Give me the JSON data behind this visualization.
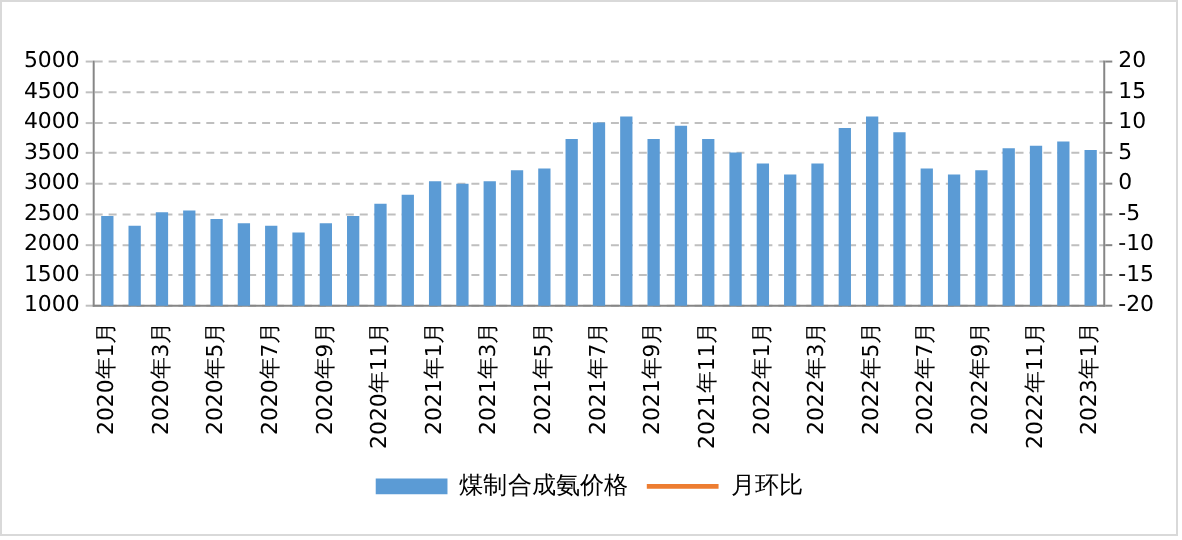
{
  "chart_data": {
    "type": "bar",
    "categories": [
      "2020年1月",
      null,
      "2020年3月",
      null,
      "2020年5月",
      null,
      "2020年7月",
      null,
      "2020年9月",
      null,
      "2020年11月",
      null,
      "2021年1月",
      null,
      "2021年3月",
      null,
      "2021年5月",
      null,
      "2021年7月",
      null,
      "2021年9月",
      null,
      "2021年11月",
      null,
      "2022年1月",
      null,
      "2022年3月",
      null,
      "2022年5月",
      null,
      "2022年7月",
      null,
      "2022年9月",
      null,
      "2022年11月",
      null,
      "2023年1月"
    ],
    "series": [
      {
        "name": "煤制合成氨价格",
        "color": "#5b9bd5",
        "values": [
          2470,
          2310,
          2530,
          2560,
          2420,
          2350,
          2310,
          2200,
          2350,
          2470,
          2670,
          2820,
          3040,
          3000,
          3040,
          3220,
          3250,
          3730,
          4000,
          4100,
          3730,
          3950,
          3730,
          3510,
          3330,
          3150,
          3330,
          3910,
          4100,
          3840,
          3250,
          3150,
          3220,
          3580,
          3620,
          3690,
          3550
        ]
      },
      {
        "name": "月环比",
        "type": "line",
        "axis": "y2",
        "color": "#ed7d31",
        "values": [
          null,
          null,
          null,
          null,
          null,
          null,
          null,
          null,
          null,
          null,
          null,
          null,
          null,
          null,
          null,
          null,
          null,
          null,
          null,
          null,
          null,
          null,
          null,
          null,
          null,
          null,
          null,
          null,
          null,
          null,
          null,
          null,
          null,
          null,
          null,
          null,
          null
        ]
      }
    ],
    "ylim": [
      1000,
      5000
    ],
    "yticks": [
      1000,
      1500,
      2000,
      2500,
      3000,
      3500,
      4000,
      4500,
      5000
    ],
    "y2lim": [
      -20,
      20
    ],
    "y2ticks": [
      -20,
      -15,
      -10,
      -5,
      0,
      5,
      10,
      15,
      20
    ],
    "grid": "y",
    "legend": "bottom"
  }
}
